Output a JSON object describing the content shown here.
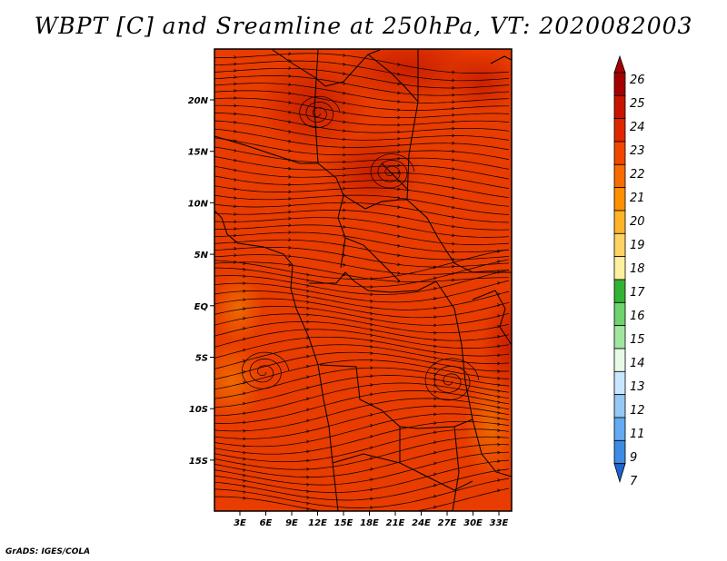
{
  "title": "WBPT [C] and Sreamline at 250hPa, VT: 2020082003",
  "credit": "GrADS: IGES/COLA",
  "lat_labels": [
    "20N",
    "15N",
    "10N",
    "5N",
    "EQ",
    "5S",
    "10S",
    "15S"
  ],
  "lon_labels": [
    "3E",
    "6E",
    "9E",
    "12E",
    "15E",
    "18E",
    "21E",
    "24E",
    "27E",
    "30E",
    "33E"
  ],
  "colorbar": {
    "labels": [
      "26",
      "25",
      "24",
      "23",
      "22",
      "21",
      "20",
      "19",
      "18",
      "17",
      "16",
      "15",
      "14",
      "13",
      "12",
      "11",
      "9",
      "7"
    ],
    "colors": [
      "#a50000",
      "#c81400",
      "#e02800",
      "#f04800",
      "#f86c00",
      "#ff9000",
      "#ffb428",
      "#ffd264",
      "#fff0a0",
      "#32b432",
      "#6ed26e",
      "#a0e6a0",
      "#e6fae6",
      "#c8e6ff",
      "#96c8f5",
      "#64aaf0",
      "#3c8ce6",
      "#1e64d2"
    ]
  }
}
